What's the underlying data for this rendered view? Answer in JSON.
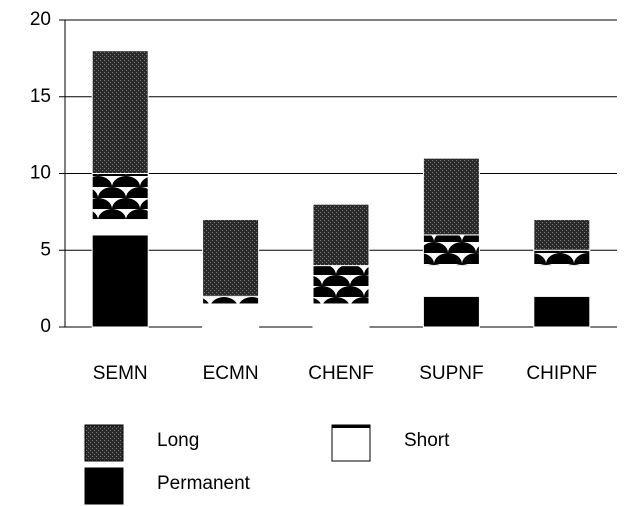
{
  "chart_data": {
    "type": "stacked-bar",
    "categories": [
      "SEMN",
      "ECMN",
      "CHENF",
      "SUPNF",
      "CHIPNF"
    ],
    "series": [
      {
        "name": "Permanent",
        "color": "#000000",
        "pattern": "solid",
        "values": [
          6,
          0,
          0,
          2,
          2
        ]
      },
      {
        "name": "Short",
        "color": "#ffffff",
        "pattern": "solid",
        "values": [
          1,
          1.5,
          1.5,
          2,
          2
        ]
      },
      {
        "color": "#000000",
        "pattern": "semicircles",
        "values": [
          3,
          0.5,
          2.5,
          2,
          1
        ]
      },
      {
        "name": "Long",
        "color": "#3a3a3a",
        "pattern": "stipple",
        "values": [
          8,
          5,
          4,
          5,
          2
        ]
      }
    ],
    "legend_order": [
      3,
      1,
      0
    ],
    "ylim": [
      0,
      20
    ],
    "yticks": [
      0,
      5,
      10,
      15,
      20
    ],
    "grid": true
  }
}
